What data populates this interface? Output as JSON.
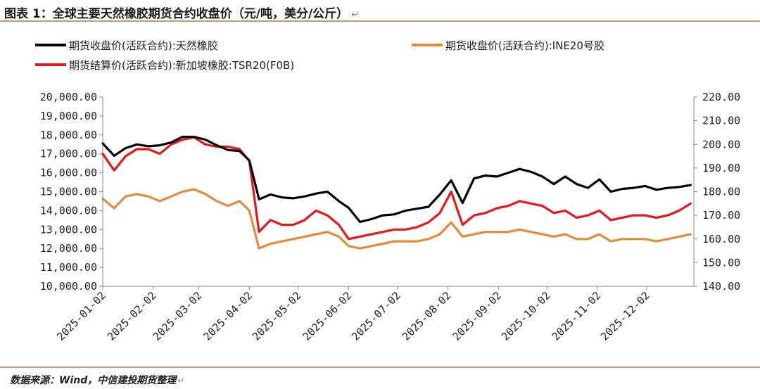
{
  "title": "图表 1：全球主要天然橡胶期货合约收盘价（元/吨，美分/公斤）",
  "return_mark": "↵",
  "source": "数据来源：Wind，中信建投期货整理",
  "chart_data": {
    "type": "line",
    "x": [
      "2025-01-02",
      "2025-01-09",
      "2025-01-16",
      "2025-01-23",
      "2025-01-30",
      "2025-02-06",
      "2025-02-13",
      "2025-02-20",
      "2025-02-27",
      "2025-03-06",
      "2025-03-13",
      "2025-03-20",
      "2025-03-27",
      "2025-04-02",
      "2025-04-08",
      "2025-04-15",
      "2025-04-22",
      "2025-04-29",
      "2025-05-06",
      "2025-05-13",
      "2025-05-20",
      "2025-05-27",
      "2025-06-02",
      "2025-06-09",
      "2025-06-16",
      "2025-06-23",
      "2025-06-30",
      "2025-07-07",
      "2025-07-14",
      "2025-07-21",
      "2025-07-28",
      "2025-08-04",
      "2025-08-11",
      "2025-08-18",
      "2025-08-25",
      "2025-09-01",
      "2025-09-08",
      "2025-09-15",
      "2025-09-22",
      "2025-09-29",
      "2025-10-06",
      "2025-10-13",
      "2025-10-20",
      "2025-10-27",
      "2025-11-03",
      "2025-11-10",
      "2025-11-17",
      "2025-11-24",
      "2025-12-01",
      "2025-12-08",
      "2025-12-15",
      "2025-12-22",
      "2025-12-29"
    ],
    "x_ticks": [
      "2025-01-02",
      "2025-02-02",
      "2025-03-02",
      "2025-04-02",
      "2025-05-02",
      "2025-06-02",
      "2025-07-02",
      "2025-08-02",
      "2025-09-02",
      "2025-10-02",
      "2025-11-02",
      "2025-12-02"
    ],
    "y_left": {
      "ticks": [
        "10,000.00",
        "11,000.00",
        "12,000.00",
        "13,000.00",
        "14,000.00",
        "15,000.00",
        "16,000.00",
        "17,000.00",
        "18,000.00",
        "19,000.00",
        "20,000.00"
      ],
      "ylim": [
        10000,
        20000
      ]
    },
    "y_right": {
      "ticks": [
        "140.00",
        "150.00",
        "160.00",
        "170.00",
        "180.00",
        "190.00",
        "200.00",
        "210.00",
        "220.00"
      ],
      "ylim": [
        140,
        220
      ]
    },
    "series": [
      {
        "name": "期货收盘价(活跃合约):天然橡胶",
        "color": "#000000",
        "axis": "left",
        "values": [
          17550,
          16900,
          17300,
          17500,
          17400,
          17450,
          17600,
          17900,
          17900,
          17750,
          17450,
          17200,
          17150,
          16650,
          14600,
          14850,
          14700,
          14650,
          14750,
          14900,
          15000,
          14500,
          14150,
          13400,
          13550,
          13750,
          13800,
          14000,
          14100,
          14200,
          14850,
          15600,
          14400,
          15700,
          15850,
          15800,
          16000,
          16200,
          16050,
          15800,
          15400,
          15800,
          15400,
          15200,
          15650,
          15000,
          15150,
          15200,
          15300,
          15100,
          15200,
          15250,
          15350
        ]
      },
      {
        "name": "期货收盘价(活跃合约):INE20号胶",
        "color": "#e58a3b",
        "axis": "right",
        "values": [
          177,
          173,
          178,
          179,
          178,
          176,
          178,
          180,
          181,
          179,
          176,
          174,
          176,
          172,
          156,
          158,
          159,
          160,
          161,
          162,
          163,
          161,
          157,
          156,
          157,
          158,
          159,
          159,
          159,
          160,
          162,
          167,
          161,
          162,
          163,
          163,
          163,
          164,
          163,
          162,
          161,
          162,
          160,
          160,
          162,
          159,
          160,
          160,
          160,
          159,
          160,
          161,
          162
        ]
      },
      {
        "name": "期货结算价(活跃合约):新加坡橡胶:TSR20(F0B)",
        "color": "#e8161b",
        "axis": "right",
        "values": [
          196,
          189,
          195,
          198,
          198,
          196,
          200,
          202,
          203,
          200,
          199,
          199,
          198,
          193,
          163,
          168,
          166,
          166,
          168,
          172,
          170,
          166,
          160,
          161,
          162,
          163,
          164,
          164,
          165,
          167,
          171,
          180,
          166,
          170,
          171,
          173,
          174,
          176,
          175,
          174,
          171,
          172,
          169,
          170,
          172,
          168,
          169,
          170,
          170,
          169,
          170,
          172,
          175
        ]
      }
    ]
  }
}
